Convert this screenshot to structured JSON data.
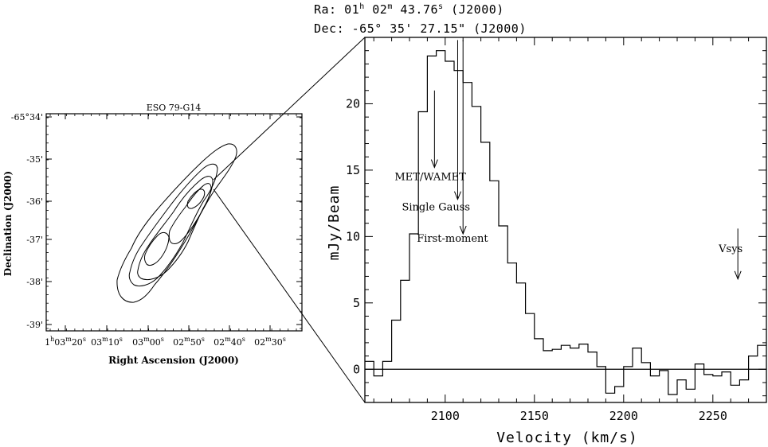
{
  "header": {
    "ra_prefix": "Ra: 01",
    "ra_h": "h",
    "ra_mid": " 02",
    "ra_m": "m",
    "ra_sec": " 43.76",
    "ra_s": "s",
    "ra_suffix": " (J2000)",
    "dec": "Dec: -65° 35' 27.15\" (J2000)"
  },
  "chart_data": [
    {
      "type": "contour",
      "title": "ESO 79-G14",
      "xlabel": "Right Ascension (J2000)",
      "ylabel": "Declination (J2000)",
      "x_tick_labels": [
        {
          "hms": [
            "1",
            "h",
            "03",
            "m",
            "20",
            "s"
          ]
        },
        {
          "hms": [
            "03",
            "m",
            "10",
            "s"
          ]
        },
        {
          "hms": [
            "03",
            "m",
            "00",
            "s"
          ]
        },
        {
          "hms": [
            "02",
            "m",
            "50",
            "s"
          ]
        },
        {
          "hms": [
            "02",
            "m",
            "40",
            "s"
          ]
        },
        {
          "hms": [
            "02",
            "m",
            "30",
            "s"
          ]
        }
      ],
      "y_tick_labels": [
        "-65°34'",
        "-35'",
        "-36'",
        "-37'",
        "-38'",
        "-39'"
      ],
      "contour_levels": 5
    },
    {
      "type": "line",
      "step": true,
      "xlabel": "Velocity (km/s)",
      "ylabel": "mJy/Beam",
      "xlim": [
        2055,
        2280
      ],
      "ylim": [
        -2.5,
        25
      ],
      "x_ticks": [
        2100,
        2150,
        2200,
        2250
      ],
      "y_ticks": [
        0,
        5,
        10,
        15,
        20
      ],
      "zero_line": true,
      "series": [
        {
          "x": [
            2055,
            2060,
            2065,
            2070,
            2075,
            2080,
            2085,
            2090,
            2095,
            2100,
            2105,
            2110,
            2115,
            2120,
            2125,
            2130,
            2135,
            2140,
            2145,
            2150,
            2155,
            2160,
            2165,
            2170,
            2175,
            2180,
            2185,
            2190,
            2195,
            2200,
            2205,
            2210,
            2215,
            2220,
            2225,
            2230,
            2235,
            2240,
            2245,
            2250,
            2255,
            2260,
            2265,
            2270,
            2275
          ],
          "values": [
            0.6,
            -0.5,
            0.6,
            3.7,
            6.7,
            10.2,
            19.4,
            23.6,
            24.0,
            23.2,
            22.5,
            21.6,
            19.8,
            17.1,
            14.2,
            10.8,
            8.0,
            6.5,
            4.2,
            2.3,
            1.4,
            1.5,
            1.8,
            1.6,
            1.9,
            1.3,
            0.2,
            -1.8,
            -1.3,
            0.2,
            1.6,
            0.5,
            -0.5,
            -0.1,
            -1.9,
            -0.8,
            -1.5,
            0.4,
            -0.4,
            -0.5,
            -0.2,
            -1.2,
            -0.8,
            1.0,
            1.8
          ]
        }
      ],
      "annotations": [
        {
          "label": "MET/WAMET",
          "x": 2094,
          "y_from": 21.0,
          "y_to": 15.2
        },
        {
          "label": "Single Gauss",
          "x": 2107,
          "y_from": 24.8,
          "y_to": 12.8
        },
        {
          "label": "First-moment",
          "x": 2110,
          "y_from": 24.8,
          "y_to": 10.2
        },
        {
          "label": "Vsys",
          "x": 2264,
          "y_from": 10.6,
          "y_to": 6.8
        }
      ]
    }
  ]
}
